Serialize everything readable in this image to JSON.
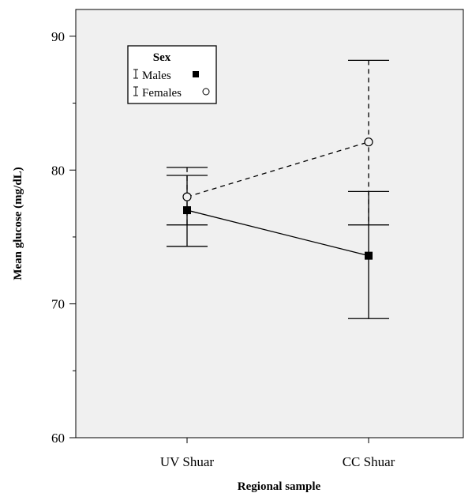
{
  "chart_data": {
    "type": "line",
    "xlabel": "Regional sample",
    "ylabel": "Mean glucose (mg/dL)",
    "categories": [
      "UV Shuar",
      "CC Shuar"
    ],
    "ylim": [
      60,
      92
    ],
    "yticks": [
      60,
      70,
      80,
      90
    ],
    "grid": false,
    "background": "#f0f0f0",
    "legend": {
      "title": "Sex",
      "placement": "top-left",
      "entries": [
        "Males",
        "Females"
      ]
    },
    "series": [
      {
        "name": "Males",
        "values": [
          77.0,
          73.6
        ],
        "error_low": [
          74.3,
          68.9
        ],
        "error_high": [
          79.6,
          78.4
        ],
        "marker": "filled-square",
        "line_style": "solid",
        "color": "#000000"
      },
      {
        "name": "Females",
        "values": [
          78.0,
          82.1
        ],
        "error_low": [
          75.9,
          75.9
        ],
        "error_high": [
          80.2,
          88.2
        ],
        "marker": "open-circle",
        "line_style": "dashed",
        "color": "#000000"
      }
    ]
  }
}
